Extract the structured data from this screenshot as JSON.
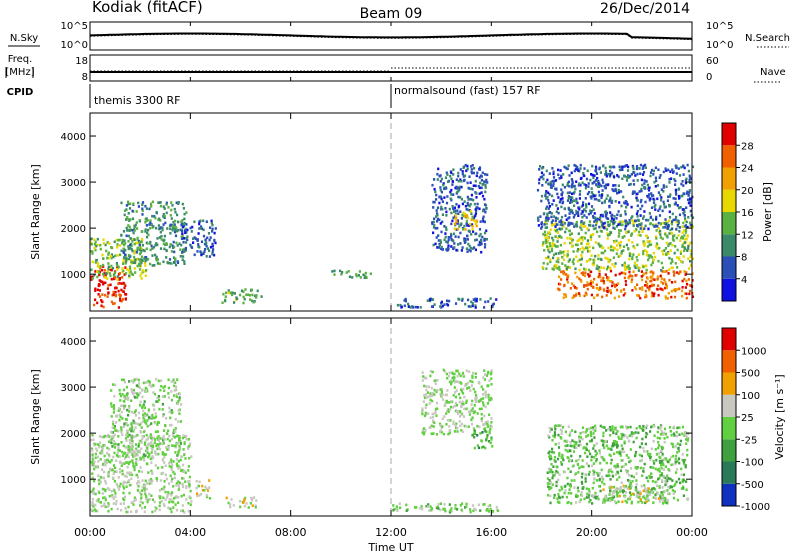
{
  "header": {
    "station": "Kodiak (fitACF)",
    "beam": "Beam 09",
    "date": "26/Dec/2014"
  },
  "nsky_panel": {
    "left_label": "N.Sky",
    "left_ticks": [
      "10^5",
      "10^0"
    ],
    "right_ticks": [
      "10^5",
      "10^0"
    ],
    "right_label": "N.Search"
  },
  "freq_panel": {
    "left_label_1": "Freq.",
    "left_label_2": "[MHz]",
    "left_ticks": [
      "18",
      "8"
    ],
    "right_ticks": [
      "60",
      "0"
    ],
    "right_label": "Nave"
  },
  "cpid_panel": {
    "label": "CPID",
    "modes": [
      "themis 3300 RF",
      "normalsound (fast) 157 RF"
    ]
  },
  "power_panel": {
    "ylabel": "Slant Range [km]",
    "yticks": [
      "1000",
      "2000",
      "3000",
      "4000"
    ],
    "colorbar_label": "Power [dB]",
    "colorbar_ticks": [
      "4",
      "8",
      "12",
      "16",
      "20",
      "24",
      "28"
    ],
    "colors": [
      "#1010e0",
      "#2a50b8",
      "#3a8a6a",
      "#5ab040",
      "#e8d800",
      "#f0a000",
      "#f06000",
      "#e00000"
    ]
  },
  "velocity_panel": {
    "ylabel": "Slant Range [km]",
    "yticks": [
      "1000",
      "2000",
      "3000",
      "4000"
    ],
    "colorbar_label": "Velocity [m s⁻¹]",
    "colorbar_ticks": [
      "1000",
      "500",
      "100",
      "25",
      "-25",
      "-100",
      "-500",
      "-1000"
    ],
    "colors": [
      "#1030c0",
      "#2a7a5a",
      "#40a040",
      "#60d040",
      "#c8c8c0",
      "#f0a000",
      "#f06000",
      "#e00000"
    ]
  },
  "xaxis": {
    "ticks": [
      "00:00",
      "04:00",
      "08:00",
      "12:00",
      "16:00",
      "20:00",
      "00:00"
    ],
    "label": "Time UT"
  },
  "chart_data": {
    "type": "heatmap",
    "title": "Kodiak (fitACF) Beam 09 26/Dec/2014",
    "xlabel": "Time UT",
    "ylabel": "Slant Range [km]",
    "x_range_hours": [
      0,
      24
    ],
    "ylim_km": [
      200,
      4500
    ],
    "panels": [
      {
        "name": "Power [dB]",
        "clim": [
          0,
          30
        ],
        "regions": [
          {
            "t": [
              0.0,
              1.4
            ],
            "r": [
              300,
              1200
            ],
            "value": 27
          },
          {
            "t": [
              0.0,
              2.2
            ],
            "r": [
              900,
              1800
            ],
            "value": 14
          },
          {
            "t": [
              1.2,
              3.8
            ],
            "r": [
              1200,
              2600
            ],
            "value": 10
          },
          {
            "t": [
              3.6,
              5.0
            ],
            "r": [
              1400,
              2200
            ],
            "value": 6
          },
          {
            "t": [
              5.2,
              6.8
            ],
            "r": [
              400,
              700
            ],
            "value": 12
          },
          {
            "t": [
              9.6,
              11.4
            ],
            "r": [
              950,
              1100
            ],
            "value": 11
          },
          {
            "t": [
              12.2,
              16.2
            ],
            "r": [
              300,
              500
            ],
            "value": 6
          },
          {
            "t": [
              13.6,
              15.8
            ],
            "r": [
              1500,
              3400
            ],
            "value": 6
          },
          {
            "t": [
              14.4,
              15.4
            ],
            "r": [
              2000,
              2400
            ],
            "value": 18
          },
          {
            "t": [
              18.6,
              24.0
            ],
            "r": [
              500,
              1100
            ],
            "value": 24
          },
          {
            "t": [
              18.0,
              24.0
            ],
            "r": [
              1100,
              2200
            ],
            "value": 14
          },
          {
            "t": [
              17.8,
              24.0
            ],
            "r": [
              2000,
              3400
            ],
            "value": 6
          }
        ]
      },
      {
        "name": "Velocity [m s⁻¹]",
        "clim": [
          -1000,
          1000
        ],
        "regions": [
          {
            "t": [
              0.0,
              4.0
            ],
            "r": [
              300,
              2000
            ],
            "value": 0
          },
          {
            "t": [
              0.8,
              3.6
            ],
            "r": [
              1500,
              3200
            ],
            "value": -60
          },
          {
            "t": [
              4.2,
              4.8
            ],
            "r": [
              600,
              1000
            ],
            "value": 120
          },
          {
            "t": [
              5.4,
              6.6
            ],
            "r": [
              400,
              650
            ],
            "value": 110
          },
          {
            "t": [
              12.0,
              16.4
            ],
            "r": [
              300,
              500
            ],
            "value": -40
          },
          {
            "t": [
              13.2,
              16.0
            ],
            "r": [
              2000,
              3400
            ],
            "value": 0
          },
          {
            "t": [
              15.2,
              16.0
            ],
            "r": [
              1700,
              2100
            ],
            "value": -300
          },
          {
            "t": [
              18.2,
              23.8
            ],
            "r": [
              500,
              2200
            ],
            "value": -150
          },
          {
            "t": [
              20.4,
              23.0
            ],
            "r": [
              500,
              900
            ],
            "value": 80
          }
        ]
      }
    ],
    "nsky_level_log": 2.6,
    "freq_mhz": 10.0
  }
}
